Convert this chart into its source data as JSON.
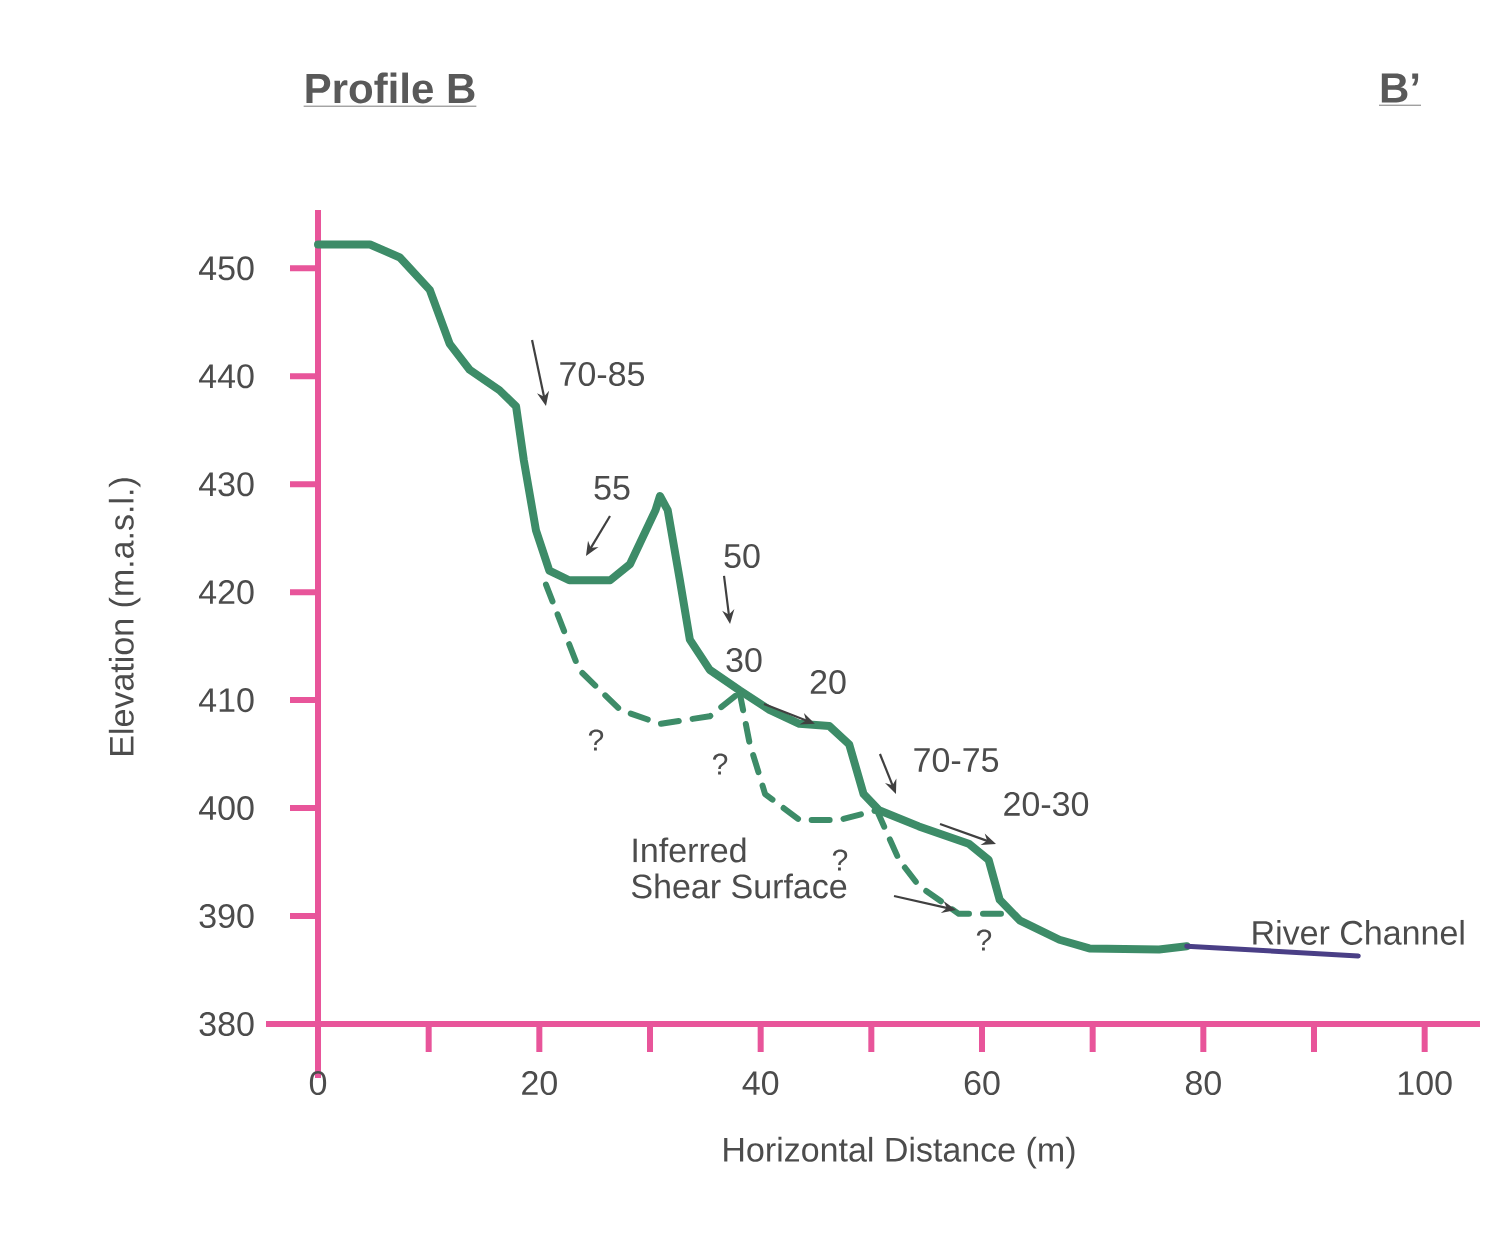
{
  "chart_data": {
    "type": "line",
    "title": "Profile B",
    "xlabel": "Horizontal Distance (m)",
    "ylabel": "Elevation (m.a.s.l.)",
    "xlim": [
      0,
      105
    ],
    "ylim": [
      380,
      455.4
    ],
    "xticks": [
      0,
      {
        "value": 10,
        "label": null
      },
      20,
      {
        "value": 30,
        "label": null
      },
      40,
      {
        "value": 50,
        "label": null
      },
      60,
      {
        "value": 70,
        "label": null
      },
      80,
      {
        "value": 90,
        "label": null
      },
      100
    ],
    "yticks": [
      380,
      390,
      400,
      410,
      420,
      430,
      440,
      450
    ],
    "grid": false,
    "marker": "none",
    "series": [
      {
        "color": "#3d8c68",
        "line_style": "solid",
        "x": [
          0,
          4.7,
          7.4,
          10.1,
          11.9,
          13.7,
          16.4,
          17.9,
          18.6,
          19.7,
          20.9,
          22.7,
          26.4,
          28.2,
          30.5,
          30.9,
          31.6,
          32.7,
          33.6,
          35.4,
          38.1,
          40.8,
          43.5,
          46.2,
          48,
          49.3,
          50.7,
          54.3,
          58.8,
          60.6,
          61.6,
          63.4,
          67,
          69.7,
          76,
          78.5
        ],
        "values": [
          452.2,
          452.2,
          451,
          448,
          443,
          440.6,
          438.7,
          437.2,
          432.2,
          425.7,
          422,
          421.1,
          421.1,
          422.6,
          427.6,
          428.9,
          427.6,
          421.1,
          415.6,
          412.8,
          410.9,
          409.1,
          407.8,
          407.6,
          405.9,
          401.3,
          399.8,
          398.3,
          396.7,
          395.2,
          391.5,
          389.6,
          387.8,
          387,
          386.9,
          387.2
        ]
      },
      {
        "name": "River Channel",
        "color": "#4a3f86",
        "line_style": "solid",
        "x": [
          78.5,
          94
        ],
        "values": [
          387.2,
          386.3
        ]
      },
      {
        "color": "#3d8c68",
        "line_style": "dashed",
        "x": [
          20.6,
          23.6,
          27.3,
          30.9,
          35.4,
          38.1
        ],
        "values": [
          420.7,
          412.8,
          409.1,
          407.8,
          408.5,
          410.7
        ]
      },
      {
        "color": "#3d8c68",
        "line_style": "dashed",
        "x": [
          38.1,
          39,
          40.4,
          43.5,
          47.1,
          50.5
        ],
        "values": [
          410.7,
          406,
          401.3,
          398.9,
          398.9,
          399.8
        ]
      },
      {
        "color": "#3d8c68",
        "line_style": "dashed",
        "x": [
          50.5,
          52.5,
          54.3,
          57.9,
          62.8
        ],
        "values": [
          399.8,
          395.2,
          392.8,
          390.2,
          390.2
        ]
      }
    ],
    "annotations": [
      "70-85",
      "55",
      "50",
      {
        "text": "30",
        "x": 44.9,
        "y": 407.8
      },
      "20",
      "70-75",
      "20-30",
      "Inferred",
      "Shear Surface",
      "?",
      "?",
      "?",
      "?",
      "B’"
    ]
  }
}
